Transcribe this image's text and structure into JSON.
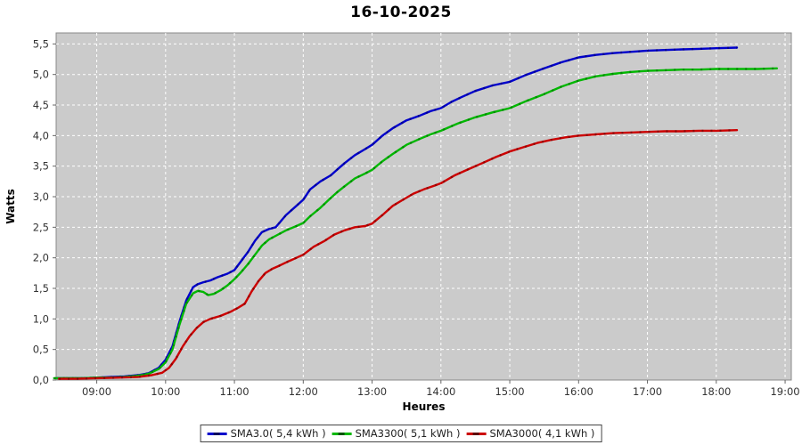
{
  "title": "16-10-2025",
  "chart_data": {
    "type": "line",
    "title": "16-10-2025",
    "xlabel": "Heures",
    "ylabel": "Watts",
    "plot_bg": "#cbcbcb",
    "grid_color": "#ffffff",
    "grid_style": "dashed",
    "axis_text_color": "#333333",
    "legend_position": "bottom",
    "x_domain": [
      8.41,
      19.09
    ],
    "y_domain": [
      0,
      5.68
    ],
    "x_ticks": [
      [
        9,
        "09:00"
      ],
      [
        10,
        "10:00"
      ],
      [
        11,
        "11:00"
      ],
      [
        12,
        "12:00"
      ],
      [
        13,
        "13:00"
      ],
      [
        14,
        "14:00"
      ],
      [
        15,
        "15:00"
      ],
      [
        16,
        "16:00"
      ],
      [
        17,
        "17:00"
      ],
      [
        18,
        "18:00"
      ],
      [
        19,
        "19:00"
      ]
    ],
    "y_ticks": [
      [
        0,
        "0,0"
      ],
      [
        0.5,
        "0,5"
      ],
      [
        1,
        "1,0"
      ],
      [
        1.5,
        "1,5"
      ],
      [
        2,
        "2,0"
      ],
      [
        2.5,
        "2,5"
      ],
      [
        3,
        "3,0"
      ],
      [
        3.5,
        "3,5"
      ],
      [
        4,
        "4,0"
      ],
      [
        4.5,
        "4,5"
      ],
      [
        5,
        "5,0"
      ],
      [
        5.5,
        "5,5"
      ]
    ],
    "series": [
      {
        "name": "SMA3.0( 5,4 kWh )",
        "color": "#0000cc",
        "marker_color": "#000066",
        "points": [
          [
            8.42,
            0.03
          ],
          [
            8.6,
            0.03
          ],
          [
            8.8,
            0.03
          ],
          [
            9.0,
            0.04
          ],
          [
            9.2,
            0.05
          ],
          [
            9.4,
            0.06
          ],
          [
            9.6,
            0.08
          ],
          [
            9.75,
            0.11
          ],
          [
            9.9,
            0.2
          ],
          [
            10.0,
            0.33
          ],
          [
            10.1,
            0.55
          ],
          [
            10.2,
            0.95
          ],
          [
            10.3,
            1.3
          ],
          [
            10.4,
            1.52
          ],
          [
            10.47,
            1.57
          ],
          [
            10.55,
            1.6
          ],
          [
            10.65,
            1.63
          ],
          [
            10.75,
            1.68
          ],
          [
            10.9,
            1.74
          ],
          [
            11.0,
            1.8
          ],
          [
            11.1,
            1.95
          ],
          [
            11.2,
            2.1
          ],
          [
            11.3,
            2.28
          ],
          [
            11.4,
            2.42
          ],
          [
            11.5,
            2.47
          ],
          [
            11.6,
            2.5
          ],
          [
            11.75,
            2.7
          ],
          [
            11.9,
            2.85
          ],
          [
            12.0,
            2.95
          ],
          [
            12.1,
            3.12
          ],
          [
            12.25,
            3.25
          ],
          [
            12.4,
            3.35
          ],
          [
            12.5,
            3.45
          ],
          [
            12.6,
            3.55
          ],
          [
            12.75,
            3.68
          ],
          [
            12.9,
            3.78
          ],
          [
            13.0,
            3.85
          ],
          [
            13.15,
            4.0
          ],
          [
            13.3,
            4.12
          ],
          [
            13.5,
            4.25
          ],
          [
            13.7,
            4.33
          ],
          [
            13.85,
            4.4
          ],
          [
            14.0,
            4.45
          ],
          [
            14.15,
            4.55
          ],
          [
            14.3,
            4.63
          ],
          [
            14.5,
            4.73
          ],
          [
            14.75,
            4.82
          ],
          [
            15.0,
            4.88
          ],
          [
            15.25,
            5.0
          ],
          [
            15.5,
            5.1
          ],
          [
            15.75,
            5.2
          ],
          [
            16.0,
            5.28
          ],
          [
            16.25,
            5.32
          ],
          [
            16.5,
            5.35
          ],
          [
            16.75,
            5.37
          ],
          [
            17.0,
            5.39
          ],
          [
            17.25,
            5.4
          ],
          [
            17.5,
            5.41
          ],
          [
            17.75,
            5.42
          ],
          [
            18.0,
            5.43
          ],
          [
            18.3,
            5.44
          ]
        ]
      },
      {
        "name": "SMA3300( 5,1 kWh )",
        "color": "#00b800",
        "marker_color": "#006600",
        "points": [
          [
            8.38,
            0.03
          ],
          [
            8.6,
            0.03
          ],
          [
            8.8,
            0.03
          ],
          [
            9.0,
            0.04
          ],
          [
            9.2,
            0.04
          ],
          [
            9.4,
            0.05
          ],
          [
            9.6,
            0.07
          ],
          [
            9.75,
            0.1
          ],
          [
            9.9,
            0.18
          ],
          [
            10.0,
            0.29
          ],
          [
            10.1,
            0.5
          ],
          [
            10.2,
            0.9
          ],
          [
            10.3,
            1.25
          ],
          [
            10.4,
            1.42
          ],
          [
            10.47,
            1.46
          ],
          [
            10.55,
            1.44
          ],
          [
            10.62,
            1.39
          ],
          [
            10.7,
            1.41
          ],
          [
            10.8,
            1.47
          ],
          [
            10.9,
            1.55
          ],
          [
            11.0,
            1.65
          ],
          [
            11.1,
            1.77
          ],
          [
            11.2,
            1.9
          ],
          [
            11.3,
            2.05
          ],
          [
            11.4,
            2.2
          ],
          [
            11.5,
            2.3
          ],
          [
            11.6,
            2.36
          ],
          [
            11.75,
            2.45
          ],
          [
            11.9,
            2.52
          ],
          [
            12.0,
            2.57
          ],
          [
            12.1,
            2.68
          ],
          [
            12.25,
            2.82
          ],
          [
            12.4,
            2.98
          ],
          [
            12.5,
            3.08
          ],
          [
            12.6,
            3.17
          ],
          [
            12.75,
            3.3
          ],
          [
            12.9,
            3.38
          ],
          [
            13.0,
            3.44
          ],
          [
            13.15,
            3.58
          ],
          [
            13.3,
            3.7
          ],
          [
            13.5,
            3.85
          ],
          [
            13.7,
            3.95
          ],
          [
            13.85,
            4.02
          ],
          [
            14.0,
            4.08
          ],
          [
            14.25,
            4.2
          ],
          [
            14.5,
            4.3
          ],
          [
            14.75,
            4.38
          ],
          [
            15.0,
            4.45
          ],
          [
            15.25,
            4.57
          ],
          [
            15.5,
            4.68
          ],
          [
            15.75,
            4.8
          ],
          [
            16.0,
            4.9
          ],
          [
            16.25,
            4.97
          ],
          [
            16.5,
            5.01
          ],
          [
            16.75,
            5.04
          ],
          [
            17.0,
            5.06
          ],
          [
            17.25,
            5.07
          ],
          [
            17.5,
            5.08
          ],
          [
            17.75,
            5.08
          ],
          [
            18.0,
            5.09
          ],
          [
            18.3,
            5.09
          ],
          [
            18.6,
            5.09
          ],
          [
            18.88,
            5.1
          ]
        ]
      },
      {
        "name": "SMA3000( 4,1 kWh )",
        "color": "#cc0000",
        "marker_color": "#660000",
        "points": [
          [
            8.45,
            0.02
          ],
          [
            8.7,
            0.02
          ],
          [
            9.0,
            0.03
          ],
          [
            9.3,
            0.04
          ],
          [
            9.6,
            0.05
          ],
          [
            9.8,
            0.08
          ],
          [
            9.95,
            0.12
          ],
          [
            10.05,
            0.2
          ],
          [
            10.15,
            0.35
          ],
          [
            10.25,
            0.55
          ],
          [
            10.35,
            0.72
          ],
          [
            10.45,
            0.85
          ],
          [
            10.55,
            0.95
          ],
          [
            10.65,
            1.0
          ],
          [
            10.8,
            1.05
          ],
          [
            10.95,
            1.12
          ],
          [
            11.05,
            1.18
          ],
          [
            11.15,
            1.25
          ],
          [
            11.25,
            1.45
          ],
          [
            11.35,
            1.62
          ],
          [
            11.45,
            1.75
          ],
          [
            11.55,
            1.82
          ],
          [
            11.65,
            1.87
          ],
          [
            11.8,
            1.95
          ],
          [
            11.9,
            2.0
          ],
          [
            12.0,
            2.05
          ],
          [
            12.15,
            2.18
          ],
          [
            12.3,
            2.27
          ],
          [
            12.45,
            2.38
          ],
          [
            12.6,
            2.45
          ],
          [
            12.75,
            2.5
          ],
          [
            12.9,
            2.52
          ],
          [
            13.0,
            2.56
          ],
          [
            13.15,
            2.7
          ],
          [
            13.3,
            2.85
          ],
          [
            13.45,
            2.95
          ],
          [
            13.6,
            3.05
          ],
          [
            13.75,
            3.12
          ],
          [
            13.9,
            3.18
          ],
          [
            14.0,
            3.22
          ],
          [
            14.2,
            3.35
          ],
          [
            14.4,
            3.45
          ],
          [
            14.6,
            3.55
          ],
          [
            14.8,
            3.65
          ],
          [
            15.0,
            3.74
          ],
          [
            15.2,
            3.81
          ],
          [
            15.4,
            3.88
          ],
          [
            15.6,
            3.93
          ],
          [
            15.8,
            3.97
          ],
          [
            16.0,
            4.0
          ],
          [
            16.25,
            4.02
          ],
          [
            16.5,
            4.04
          ],
          [
            16.75,
            4.05
          ],
          [
            17.0,
            4.06
          ],
          [
            17.25,
            4.07
          ],
          [
            17.5,
            4.07
          ],
          [
            17.75,
            4.08
          ],
          [
            18.0,
            4.08
          ],
          [
            18.3,
            4.09
          ]
        ]
      }
    ]
  },
  "legend": {
    "items": [
      {
        "label": "SMA3.0( 5,4 kWh )",
        "color": "#0000cc"
      },
      {
        "label": "SMA3300( 5,1 kWh )",
        "color": "#00b800"
      },
      {
        "label": "SMA3000( 4,1 kWh )",
        "color": "#cc0000"
      }
    ]
  }
}
